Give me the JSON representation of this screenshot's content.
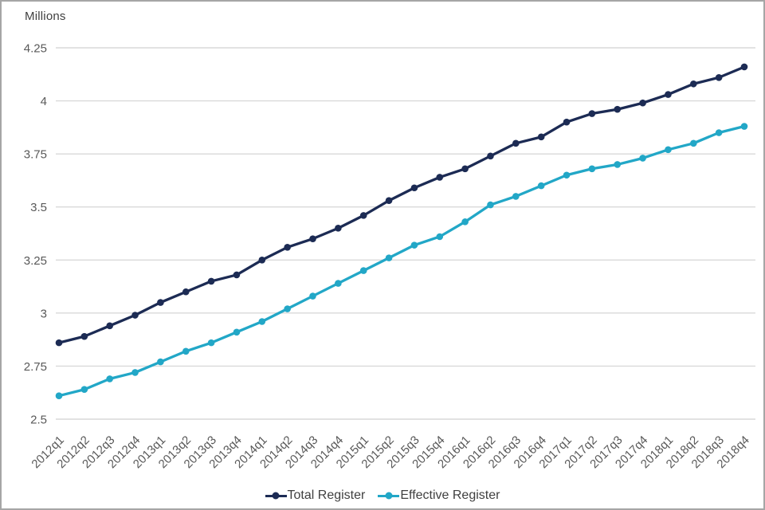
{
  "chart_data": {
    "type": "line",
    "title": "",
    "unit_label": "Millions",
    "x_axis_label": "",
    "y_axis_label": "Millions",
    "categories": [
      "2012q1",
      "2012q2",
      "2012q3",
      "2012q4",
      "2013q1",
      "2013q2",
      "2013q3",
      "2013q4",
      "2014q1",
      "2014q2",
      "2014q3",
      "2014q4",
      "2015q1",
      "2015q2",
      "2015q3",
      "2015q4",
      "2016q1",
      "2016q2",
      "2016q3",
      "2016q4",
      "2017q1",
      "2017q2",
      "2017q3",
      "2017q4",
      "2018q1",
      "2018q2",
      "2018q3",
      "2018q4"
    ],
    "series": [
      {
        "name": "Total Register",
        "color": "#1c2b54",
        "values": [
          2.86,
          2.89,
          2.94,
          2.99,
          3.05,
          3.1,
          3.15,
          3.18,
          3.25,
          3.31,
          3.35,
          3.4,
          3.46,
          3.53,
          3.59,
          3.64,
          3.68,
          3.74,
          3.8,
          3.83,
          3.9,
          3.94,
          3.96,
          3.99,
          4.03,
          4.08,
          4.11,
          4.16
        ]
      },
      {
        "name": "Effective Register",
        "color": "#22a7c7",
        "values": [
          2.61,
          2.64,
          2.69,
          2.72,
          2.77,
          2.82,
          2.86,
          2.91,
          2.96,
          3.02,
          3.08,
          3.14,
          3.2,
          3.26,
          3.32,
          3.36,
          3.43,
          3.51,
          3.55,
          3.6,
          3.65,
          3.68,
          3.7,
          3.73,
          3.77,
          3.8,
          3.85,
          3.88
        ]
      }
    ],
    "ylim": [
      2.5,
      4.25
    ],
    "yticks": [
      4.25,
      4,
      3.75,
      3.5,
      3.25,
      3,
      2.75,
      2.5
    ],
    "grid": "horizontal",
    "legend_position": "bottom-center",
    "x_tick_rotation": -45
  },
  "styles": {
    "gridline_color": "#d9d9d9",
    "tick_text_color": "#595959",
    "unit_text_color": "#404040",
    "legend_text_color": "#404040",
    "frame_border_color": "#a6a6a6",
    "background_color": "#ffffff"
  }
}
